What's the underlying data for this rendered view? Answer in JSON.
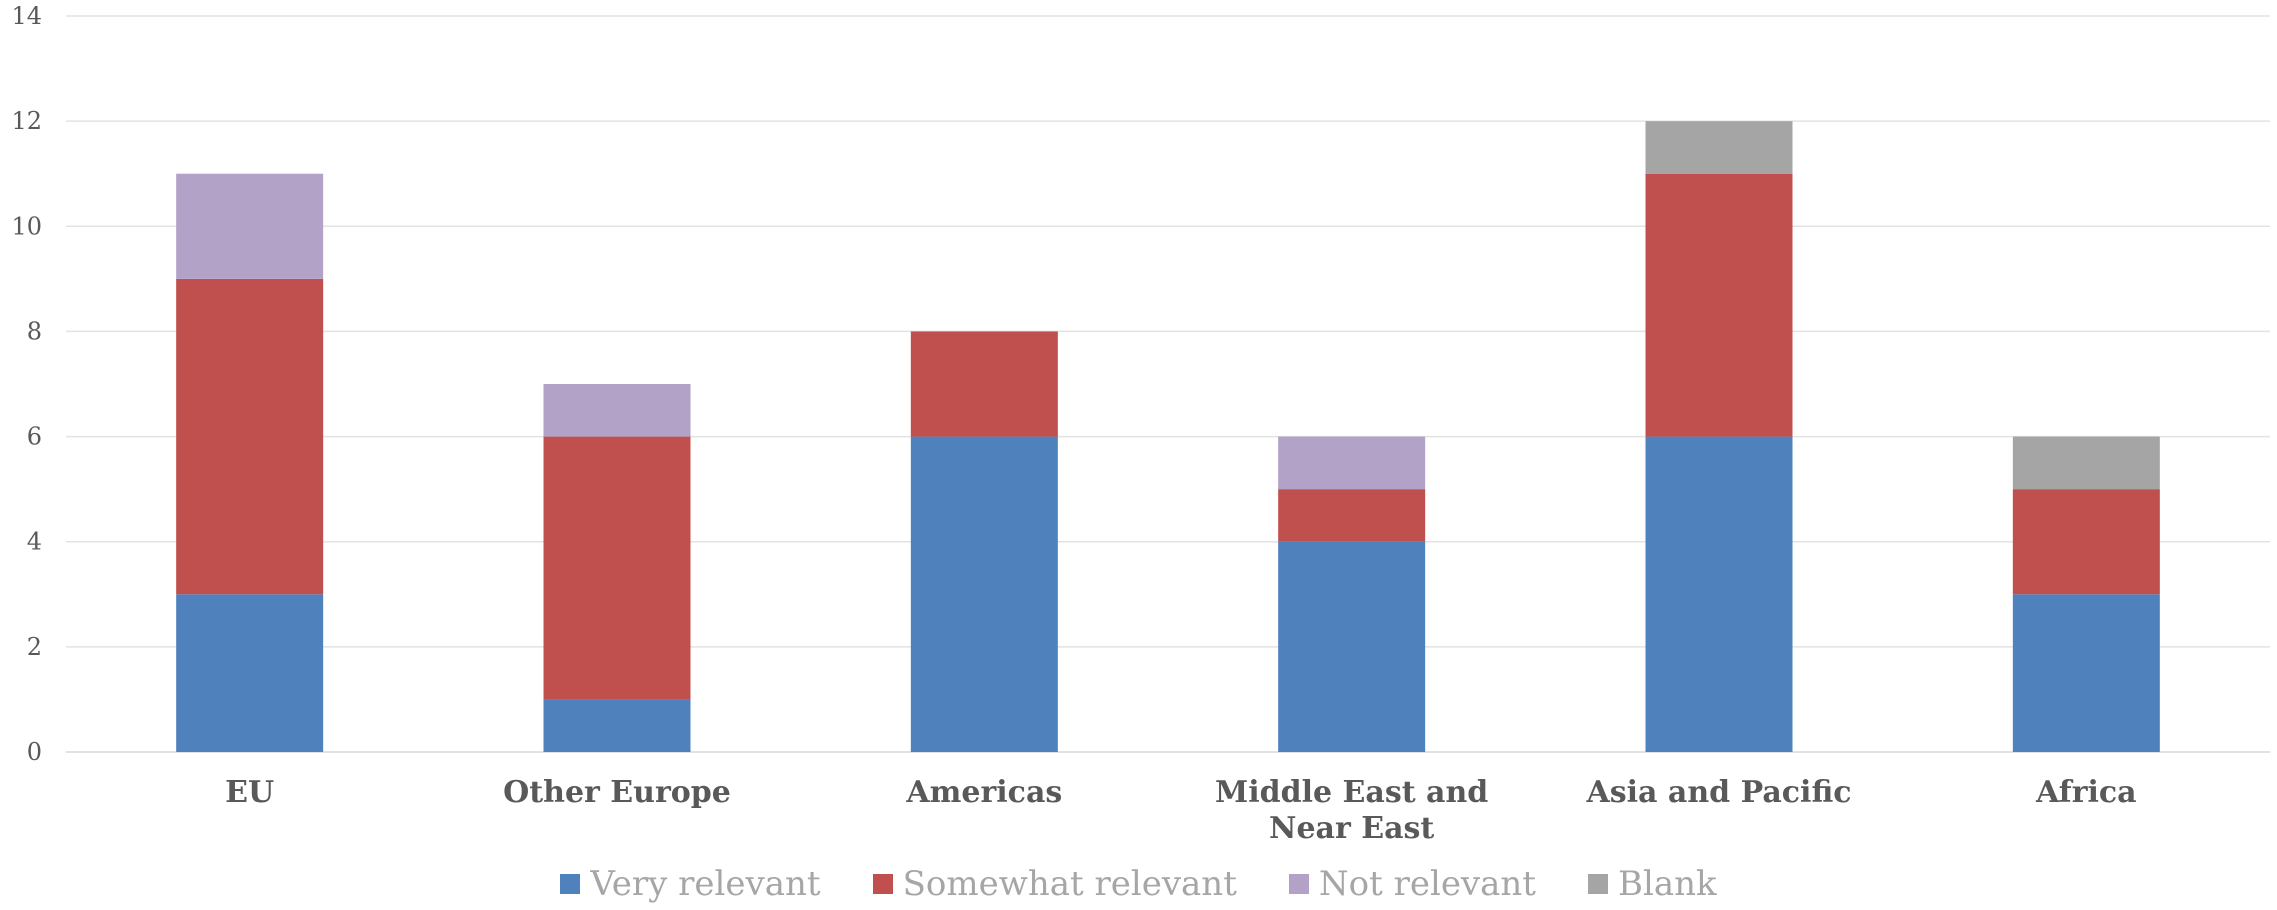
{
  "chart_data": {
    "type": "bar",
    "stacked": true,
    "title": "",
    "xlabel": "",
    "ylabel": "",
    "ylim": [
      0,
      14
    ],
    "yticks": [
      "0",
      "2",
      "4",
      "6",
      "8",
      "10",
      "12",
      "14"
    ],
    "grid": true,
    "legend_position": "bottom",
    "categories": [
      "EU",
      "Other Europe",
      "Americas",
      "Middle East and Near East",
      "Asia and Pacific",
      "Africa"
    ],
    "series": [
      {
        "name": "Very relevant",
        "color": "#4f81bd",
        "values": [
          3,
          1,
          6,
          4,
          6,
          3
        ]
      },
      {
        "name": "Somewhat relevant",
        "color": "#c0504d",
        "values": [
          6,
          5,
          2,
          1,
          5,
          2
        ]
      },
      {
        "name": "Not relevant",
        "color": "#b3a2c7",
        "values": [
          2,
          1,
          0,
          1,
          0,
          0
        ]
      },
      {
        "name": "Blank",
        "color": "#a5a5a5",
        "values": [
          0,
          0,
          0,
          0,
          1,
          1
        ]
      }
    ]
  }
}
